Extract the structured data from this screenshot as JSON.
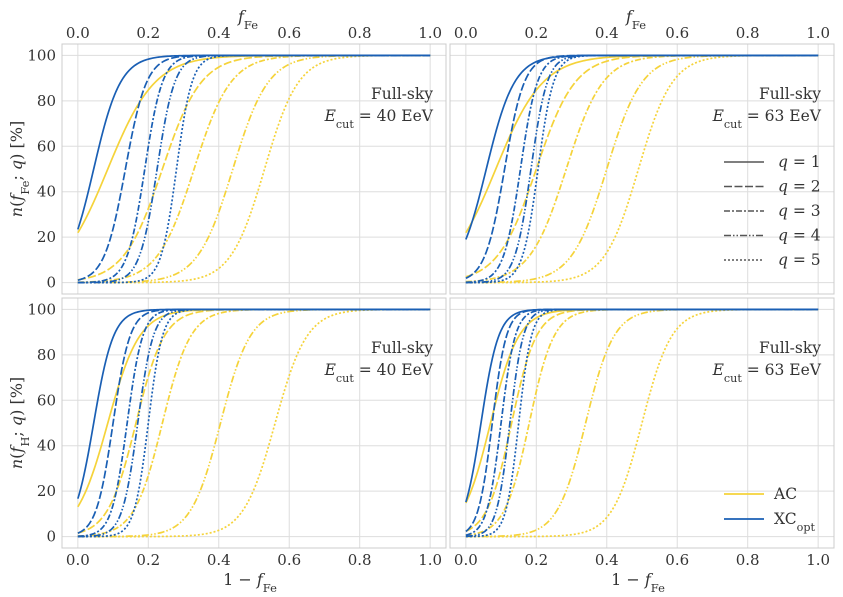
{
  "chart_data": {
    "type": "line",
    "layout": "2x2 grid of panels sharing axes",
    "colors": {
      "AC": "#f5d33a",
      "XC_opt": "#1a5fb4"
    },
    "top_axis_label": "f_Fe",
    "bottom_axis_label": "1 − f_Fe",
    "ylabel_top_row": "n(f_Fe; q) [%]",
    "ylabel_bottom_row": "n(f_H; q) [%]",
    "xlim": [
      0,
      1
    ],
    "ylim": [
      0,
      100
    ],
    "x_tick_labels": [
      "0.0",
      "0.2",
      "0.4",
      "0.6",
      "0.8",
      "1.0"
    ],
    "y_tick_labels": [
      "0",
      "20",
      "40",
      "60",
      "80",
      "100"
    ],
    "legend_q": {
      "placement": "right (top-right panel)",
      "entries": [
        "q = 1",
        "q = 2",
        "q = 3",
        "q = 4",
        "q = 5"
      ]
    },
    "legend_method": {
      "placement": "bottom-right (bottom-right panel)",
      "entries": [
        "AC",
        "XC_opt"
      ]
    },
    "curve_model": "logistic, n = 100 / (1 + exp(-(x - x50) / w)); parameters read from plot",
    "panels": [
      {
        "label_line1": "Full-sky",
        "label_line2": "E_cut = 40 EeV",
        "row": "top",
        "series": [
          {
            "method": "AC",
            "q": 1,
            "x50": 0.085,
            "w": 0.067
          },
          {
            "method": "AC",
            "q": 2,
            "x50": 0.24,
            "w": 0.055
          },
          {
            "method": "AC",
            "q": 3,
            "x50": 0.33,
            "w": 0.052
          },
          {
            "method": "AC",
            "q": 4,
            "x50": 0.44,
            "w": 0.05
          },
          {
            "method": "AC",
            "q": 5,
            "x50": 0.53,
            "w": 0.048
          },
          {
            "method": "XC_opt",
            "q": 1,
            "x50": 0.045,
            "w": 0.038
          },
          {
            "method": "XC_opt",
            "q": 2,
            "x50": 0.135,
            "w": 0.03
          },
          {
            "method": "XC_opt",
            "q": 3,
            "x50": 0.19,
            "w": 0.025
          },
          {
            "method": "XC_opt",
            "q": 4,
            "x50": 0.225,
            "w": 0.025
          },
          {
            "method": "XC_opt",
            "q": 5,
            "x50": 0.28,
            "w": 0.022
          }
        ]
      },
      {
        "label_line1": "Full-sky",
        "label_line2": "E_cut = 63 EeV",
        "row": "top",
        "series": [
          {
            "method": "AC",
            "q": 1,
            "x50": 0.085,
            "w": 0.067
          },
          {
            "method": "AC",
            "q": 2,
            "x50": 0.2,
            "w": 0.055
          },
          {
            "method": "AC",
            "q": 3,
            "x50": 0.285,
            "w": 0.052
          },
          {
            "method": "AC",
            "q": 4,
            "x50": 0.4,
            "w": 0.05
          },
          {
            "method": "AC",
            "q": 5,
            "x50": 0.49,
            "w": 0.048
          },
          {
            "method": "XC_opt",
            "q": 1,
            "x50": 0.058,
            "w": 0.04
          },
          {
            "method": "XC_opt",
            "q": 2,
            "x50": 0.11,
            "w": 0.028
          },
          {
            "method": "XC_opt",
            "q": 3,
            "x50": 0.155,
            "w": 0.024
          },
          {
            "method": "XC_opt",
            "q": 4,
            "x50": 0.185,
            "w": 0.023
          },
          {
            "method": "XC_opt",
            "q": 5,
            "x50": 0.205,
            "w": 0.022
          }
        ]
      },
      {
        "label_line1": "Full-sky",
        "label_line2": "E_cut = 40 EeV",
        "row": "bottom",
        "series": [
          {
            "method": "AC",
            "q": 1,
            "x50": 0.085,
            "w": 0.045
          },
          {
            "method": "AC",
            "q": 2,
            "x50": 0.165,
            "w": 0.04
          },
          {
            "method": "AC",
            "q": 3,
            "x50": 0.24,
            "w": 0.04
          },
          {
            "method": "AC",
            "q": 4,
            "x50": 0.405,
            "w": 0.042
          },
          {
            "method": "AC",
            "q": 5,
            "x50": 0.56,
            "w": 0.045
          },
          {
            "method": "XC_opt",
            "q": 1,
            "x50": 0.045,
            "w": 0.028
          },
          {
            "method": "XC_opt",
            "q": 2,
            "x50": 0.1,
            "w": 0.024
          },
          {
            "method": "XC_opt",
            "q": 3,
            "x50": 0.14,
            "w": 0.022
          },
          {
            "method": "XC_opt",
            "q": 4,
            "x50": 0.17,
            "w": 0.022
          },
          {
            "method": "XC_opt",
            "q": 5,
            "x50": 0.2,
            "w": 0.02
          }
        ]
      },
      {
        "label_line1": "Full-sky",
        "label_line2": "E_cut = 63 EeV",
        "row": "bottom",
        "series": [
          {
            "method": "AC",
            "q": 1,
            "x50": 0.07,
            "w": 0.04
          },
          {
            "method": "AC",
            "q": 2,
            "x50": 0.13,
            "w": 0.035
          },
          {
            "method": "AC",
            "q": 3,
            "x50": 0.18,
            "w": 0.035
          },
          {
            "method": "AC",
            "q": 4,
            "x50": 0.34,
            "w": 0.04
          },
          {
            "method": "AC",
            "q": 5,
            "x50": 0.5,
            "w": 0.042
          },
          {
            "method": "XC_opt",
            "q": 1,
            "x50": 0.043,
            "w": 0.025
          },
          {
            "method": "XC_opt",
            "q": 2,
            "x50": 0.075,
            "w": 0.02
          },
          {
            "method": "XC_opt",
            "q": 3,
            "x50": 0.1,
            "w": 0.02
          },
          {
            "method": "XC_opt",
            "q": 4,
            "x50": 0.125,
            "w": 0.019
          },
          {
            "method": "XC_opt",
            "q": 5,
            "x50": 0.15,
            "w": 0.018
          }
        ]
      }
    ]
  }
}
